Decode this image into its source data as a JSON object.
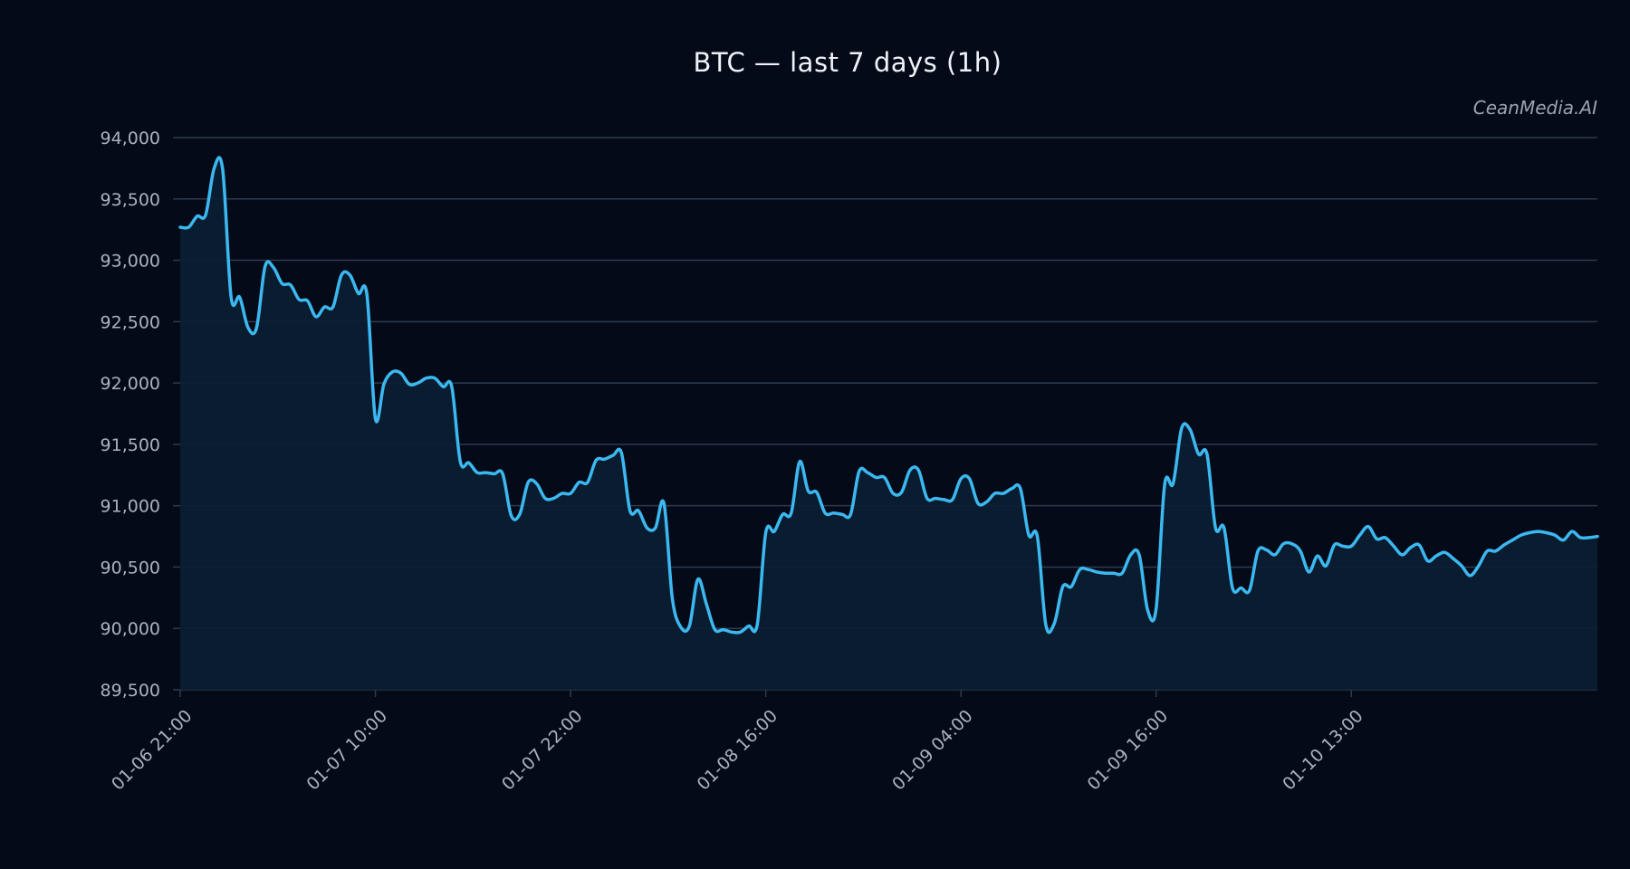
{
  "chart_data": {
    "type": "area",
    "title": "BTC — last 7 days (1h)",
    "watermark": "CeanMedia.AI",
    "xlabel": "",
    "ylabel": "",
    "ylim": [
      89500,
      94000
    ],
    "grid": true,
    "yticks": [
      89500,
      90000,
      90500,
      91000,
      91500,
      92000,
      92500,
      93000,
      93500,
      94000
    ],
    "ytick_labels": [
      "89,500",
      "90,000",
      "90,500",
      "91,000",
      "91,500",
      "92,000",
      "92,500",
      "93,000",
      "93,500",
      "94,000"
    ],
    "xticks": [
      {
        "label": "01-06 21:00",
        "index": 0
      },
      {
        "label": "01-07 10:00",
        "index": 23
      },
      {
        "label": "01-07 22:00",
        "index": 46
      },
      {
        "label": "01-08 16:00",
        "index": 69
      },
      {
        "label": "01-09 04:00",
        "index": 92
      },
      {
        "label": "01-09 16:00",
        "index": 115
      },
      {
        "label": "01-10 13:00",
        "index": 138
      }
    ],
    "colors": {
      "line": "#3cb8f0",
      "fill": "#0a1e33",
      "grid": "#2e3a4c"
    },
    "series": [
      {
        "values": [
          93270,
          93270,
          93360,
          93370,
          93750,
          93740,
          92700,
          92700,
          92450,
          92450,
          92950,
          92940,
          92810,
          92800,
          92680,
          92670,
          92540,
          92620,
          92620,
          92880,
          92880,
          92730,
          92720,
          91710,
          91990,
          92090,
          92080,
          91990,
          92000,
          92040,
          92040,
          91970,
          91970,
          91360,
          91350,
          91270,
          91270,
          91260,
          91260,
          90920,
          90930,
          91190,
          91180,
          91060,
          91060,
          91100,
          91100,
          91190,
          91190,
          91370,
          91380,
          91410,
          91430,
          90960,
          90960,
          90820,
          90820,
          91020,
          90240,
          90010,
          90020,
          90400,
          90200,
          89990,
          89990,
          89970,
          89970,
          90020,
          90030,
          90780,
          90790,
          90930,
          90940,
          91360,
          91120,
          91110,
          90940,
          90940,
          90930,
          90930,
          91280,
          91270,
          91230,
          91230,
          91100,
          91110,
          91290,
          91290,
          91060,
          91060,
          91050,
          91050,
          91220,
          91220,
          91020,
          91030,
          91100,
          91100,
          91140,
          91140,
          90760,
          90750,
          90030,
          90040,
          90340,
          90340,
          90480,
          90480,
          90460,
          90450,
          90450,
          90450,
          90600,
          90600,
          90150,
          90160,
          91170,
          91180,
          91630,
          91620,
          91420,
          91420,
          90820,
          90820,
          90330,
          90330,
          90310,
          90630,
          90640,
          90600,
          90690,
          90690,
          90630,
          90460,
          90590,
          90510,
          90680,
          90670,
          90670,
          90760,
          90830,
          90730,
          90740,
          90670,
          90600,
          90660,
          90680,
          90550,
          90590,
          90620,
          90570,
          90510,
          90430,
          90510,
          90630,
          90630,
          90680,
          90720,
          90760,
          90780,
          90790,
          90780,
          90760,
          90720,
          90790,
          90740,
          90740,
          90750
        ]
      }
    ]
  }
}
